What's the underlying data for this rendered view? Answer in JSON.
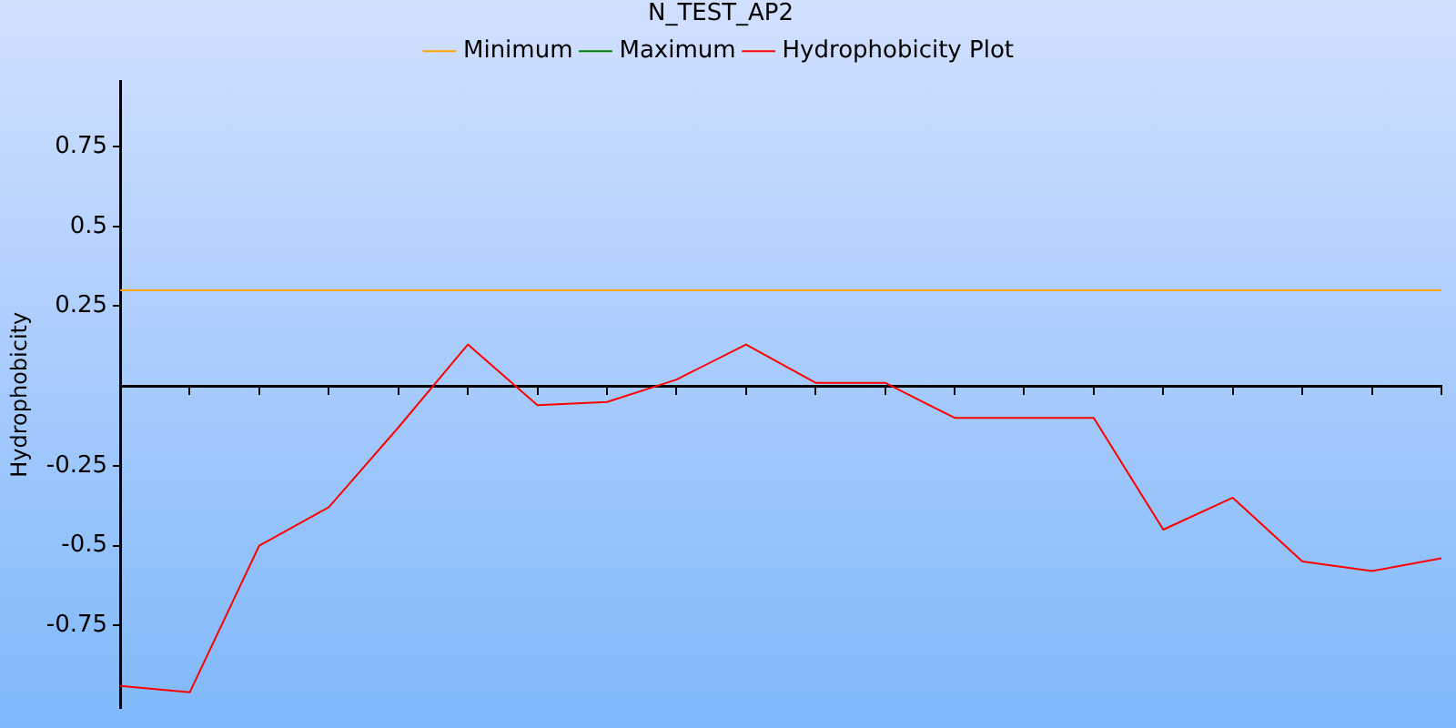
{
  "chart_data": {
    "type": "line",
    "title": "N_TEST_AP2",
    "ylabel": "Hydrophobicity",
    "categories": [
      null,
      null,
      null,
      null,
      null,
      null,
      null,
      null,
      null,
      null,
      null,
      null,
      null,
      null,
      null,
      null,
      null,
      null,
      null,
      null
    ],
    "series": [
      {
        "name": "Minimum",
        "color": "#ffa500",
        "values": [
          0.3,
          0.3,
          0.3,
          0.3,
          0.3,
          0.3,
          0.3,
          0.3,
          0.3,
          0.3,
          0.3,
          0.3,
          0.3,
          0.3,
          0.3,
          0.3,
          0.3,
          0.3,
          0.3,
          0.3
        ]
      },
      {
        "name": "Maximum",
        "color": "#008000",
        "values": [
          null,
          null,
          null,
          null,
          null,
          null,
          null,
          null,
          null,
          null,
          null,
          null,
          null,
          null,
          null,
          null,
          null,
          null,
          null,
          null
        ]
      },
      {
        "name": "Hydrophobicity Plot",
        "color": "#ff0000",
        "values": [
          -0.94,
          -0.96,
          -0.5,
          -0.38,
          -0.13,
          0.13,
          -0.06,
          -0.05,
          0.02,
          0.13,
          0.01,
          0.01,
          -0.1,
          -0.1,
          -0.1,
          -0.45,
          -0.35,
          -0.55,
          -0.58,
          -0.54
        ]
      }
    ],
    "ylim": [
      -1.01,
      0.955
    ],
    "yticks": [
      0.75,
      0.5,
      0.25,
      -0.25,
      -0.5,
      -0.75
    ],
    "tick_labels": "y",
    "grid": false,
    "legend": "top",
    "marker": "none",
    "line_style": "solid"
  }
}
